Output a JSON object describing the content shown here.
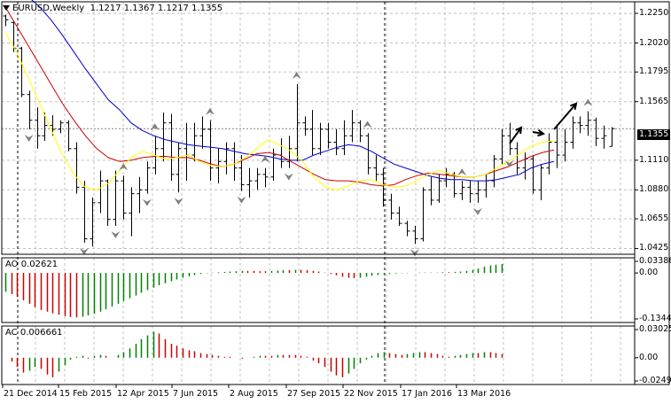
{
  "main": {
    "menu_icon": "triangle-down-icon",
    "symbol": "EURUSD,Weekly",
    "ohlc": "1.1217 1.1367 1.1217 1.1355",
    "price_axis": [
      "1.2250",
      "1.2020",
      "1.1795",
      "1.1565",
      "1.1110",
      "1.0880",
      "1.0655",
      "1.0425"
    ],
    "current_price": "1.1355"
  },
  "ao": {
    "title": "AO 0.02621",
    "axis": [
      "0.03386",
      "0.00",
      "-0.13442"
    ]
  },
  "ac": {
    "title": "AC 0.006661",
    "axis": [
      "0.030255",
      "0.00",
      "-0.02499"
    ]
  },
  "time_axis": [
    "21 Dec 2014",
    "15 Feb 2015",
    "12 Apr 2015",
    "7 Jun 2015",
    "2 Aug 2015",
    "27 Sep 2015",
    "22 Nov 2015",
    "17 Jan 2016",
    "13 Mar 2016"
  ],
  "colors": {
    "alligator_jaw": "#0000cc",
    "alligator_teeth": "#cc0000",
    "alligator_lips": "#ffff00",
    "bars": "#000000",
    "fractals": "#808080",
    "histogram_up": "#008000",
    "histogram_down": "#cc0000",
    "grid": "#c0c0c0"
  },
  "chart_data": {
    "type": "ohlc",
    "symbol": "EURUSD",
    "timeframe": "Weekly",
    "ylim": [
      1.038,
      1.234
    ],
    "indicators": [
      "Alligator",
      "Fractals"
    ],
    "bars": [
      [
        1.223,
        1.224,
        1.215,
        1.22
      ],
      [
        1.218,
        1.219,
        1.195,
        1.198
      ],
      [
        1.198,
        1.199,
        1.16,
        1.162
      ],
      [
        1.162,
        1.165,
        1.135,
        1.142
      ],
      [
        1.142,
        1.152,
        1.12,
        1.13
      ],
      [
        1.13,
        1.148,
        1.126,
        1.138
      ],
      [
        1.138,
        1.146,
        1.13,
        1.135
      ],
      [
        1.135,
        1.142,
        1.132,
        1.14
      ],
      [
        1.14,
        1.142,
        1.118,
        1.12
      ],
      [
        1.12,
        1.125,
        1.085,
        1.09
      ],
      [
        1.09,
        1.095,
        1.047,
        1.05
      ],
      [
        1.05,
        1.082,
        1.044,
        1.078
      ],
      [
        1.078,
        1.103,
        1.07,
        1.095
      ],
      [
        1.095,
        1.096,
        1.06,
        1.065
      ],
      [
        1.065,
        1.103,
        1.06,
        1.095
      ],
      [
        1.095,
        1.099,
        1.065,
        1.07
      ],
      [
        1.07,
        1.09,
        1.052,
        1.085
      ],
      [
        1.085,
        1.098,
        1.07,
        1.088
      ],
      [
        1.088,
        1.11,
        1.085,
        1.105
      ],
      [
        1.105,
        1.13,
        1.1,
        1.12
      ],
      [
        1.12,
        1.148,
        1.11,
        1.14
      ],
      [
        1.14,
        1.147,
        1.095,
        1.1
      ],
      [
        1.1,
        1.125,
        1.086,
        1.12
      ],
      [
        1.12,
        1.14,
        1.095,
        1.115
      ],
      [
        1.115,
        1.14,
        1.11,
        1.13
      ],
      [
        1.13,
        1.145,
        1.12,
        1.135
      ],
      [
        1.135,
        1.142,
        1.095,
        1.105
      ],
      [
        1.105,
        1.12,
        1.093,
        1.11
      ],
      [
        1.11,
        1.125,
        1.1,
        1.12
      ],
      [
        1.12,
        1.125,
        1.095,
        1.105
      ],
      [
        1.105,
        1.115,
        1.087,
        1.092
      ],
      [
        1.092,
        1.105,
        1.082,
        1.095
      ],
      [
        1.095,
        1.105,
        1.088,
        1.1
      ],
      [
        1.1,
        1.105,
        1.09,
        1.098
      ],
      [
        1.098,
        1.12,
        1.095,
        1.115
      ],
      [
        1.115,
        1.128,
        1.105,
        1.11
      ],
      [
        1.11,
        1.13,
        1.105,
        1.12
      ],
      [
        1.12,
        1.17,
        1.11,
        1.14
      ],
      [
        1.14,
        1.145,
        1.13,
        1.135
      ],
      [
        1.135,
        1.15,
        1.115,
        1.12
      ],
      [
        1.12,
        1.14,
        1.115,
        1.135
      ],
      [
        1.135,
        1.14,
        1.12,
        1.125
      ],
      [
        1.125,
        1.135,
        1.115,
        1.12
      ],
      [
        1.12,
        1.142,
        1.115,
        1.13
      ],
      [
        1.13,
        1.15,
        1.125,
        1.14
      ],
      [
        1.14,
        1.142,
        1.125,
        1.13
      ],
      [
        1.13,
        1.132,
        1.1,
        1.105
      ],
      [
        1.105,
        1.115,
        1.095,
        1.1
      ],
      [
        1.1,
        1.105,
        1.075,
        1.08
      ],
      [
        1.08,
        1.085,
        1.065,
        1.07
      ],
      [
        1.07,
        1.075,
        1.06,
        1.062
      ],
      [
        1.062,
        1.064,
        1.052,
        1.056
      ],
      [
        1.056,
        1.06,
        1.046,
        1.05
      ],
      [
        1.05,
        1.09,
        1.048,
        1.088
      ],
      [
        1.088,
        1.098,
        1.076,
        1.08
      ],
      [
        1.08,
        1.1,
        1.078,
        1.095
      ],
      [
        1.095,
        1.105,
        1.09,
        1.1
      ],
      [
        1.1,
        1.102,
        1.082,
        1.085
      ],
      [
        1.085,
        1.095,
        1.08,
        1.09
      ],
      [
        1.09,
        1.095,
        1.078,
        1.085
      ],
      [
        1.085,
        1.095,
        1.078,
        1.088
      ],
      [
        1.088,
        1.1,
        1.082,
        1.095
      ],
      [
        1.095,
        1.115,
        1.09,
        1.112
      ],
      [
        1.112,
        1.135,
        1.108,
        1.13
      ],
      [
        1.13,
        1.14,
        1.115,
        1.12
      ],
      [
        1.12,
        1.125,
        1.1,
        1.105
      ],
      [
        1.105,
        1.117,
        1.096,
        1.112
      ],
      [
        1.112,
        1.115,
        1.085,
        1.088
      ],
      [
        1.088,
        1.108,
        1.08,
        1.105
      ],
      [
        1.105,
        1.132,
        1.1,
        1.125
      ],
      [
        1.125,
        1.138,
        1.105,
        1.115
      ],
      [
        1.115,
        1.135,
        1.11,
        1.125
      ],
      [
        1.125,
        1.145,
        1.12,
        1.14
      ],
      [
        1.14,
        1.145,
        1.132,
        1.138
      ],
      [
        1.138,
        1.149,
        1.13,
        1.142
      ],
      [
        1.142,
        1.144,
        1.122,
        1.128
      ],
      [
        1.128,
        1.138,
        1.12,
        1.13
      ],
      [
        1.1217,
        1.1367,
        1.1217,
        1.1355
      ]
    ],
    "alligator": {
      "jaw": [
        1.25,
        1.245,
        1.238,
        1.23,
        1.22,
        1.208,
        1.195,
        1.182,
        1.17,
        1.158,
        1.15,
        1.14,
        1.134,
        1.13,
        1.127,
        1.125,
        1.123,
        1.122,
        1.121,
        1.12,
        1.118,
        1.116,
        1.115,
        1.114,
        1.112,
        1.111,
        1.111,
        1.115,
        1.118,
        1.121,
        1.123,
        1.122,
        1.118,
        1.113,
        1.108,
        1.105,
        1.102,
        1.099,
        1.097,
        1.096,
        1.096,
        1.095,
        1.095,
        1.096,
        1.098,
        1.1,
        1.105,
        1.108,
        1.11
      ],
      "teeth": [
        1.23,
        1.215,
        1.2,
        1.185,
        1.17,
        1.155,
        1.142,
        1.13,
        1.12,
        1.113,
        1.11,
        1.111,
        1.113,
        1.114,
        1.114,
        1.113,
        1.113,
        1.111,
        1.108,
        1.106,
        1.108,
        1.112,
        1.116,
        1.117,
        1.115,
        1.11,
        1.105,
        1.1,
        1.096,
        1.095,
        1.095,
        1.094,
        1.092,
        1.091,
        1.092,
        1.096,
        1.099,
        1.101,
        1.1,
        1.099,
        1.098,
        1.098,
        1.1,
        1.103,
        1.106,
        1.11,
        1.114,
        1.117,
        1.119
      ],
      "lips": [
        1.21,
        1.195,
        1.175,
        1.155,
        1.135,
        1.115,
        1.1,
        1.09,
        1.088,
        1.093,
        1.103,
        1.113,
        1.118,
        1.115,
        1.112,
        1.113,
        1.115,
        1.11,
        1.107,
        1.106,
        1.108,
        1.113,
        1.12,
        1.127,
        1.123,
        1.118,
        1.11,
        1.098,
        1.09,
        1.088,
        1.091,
        1.095,
        1.096,
        1.092,
        1.09,
        1.091,
        1.095,
        1.1,
        1.103,
        1.1,
        1.098,
        1.098,
        1.1,
        1.105,
        1.11,
        1.116,
        1.122,
        1.125,
        1.126
      ]
    },
    "fractals_up": [
      15,
      19,
      26,
      33,
      37,
      46,
      58,
      74
    ],
    "fractals_down": [
      3,
      10,
      14,
      18,
      22,
      30,
      36,
      52,
      60,
      64
    ],
    "ao": {
      "ylim": [
        -0.13442,
        0.03386
      ],
      "values": [
        -0.055,
        -0.062,
        -0.07,
        -0.08,
        -0.09,
        -0.1,
        -0.108,
        -0.113,
        -0.118,
        -0.122,
        -0.126,
        -0.129,
        -0.13,
        -0.128,
        -0.124,
        -0.119,
        -0.113,
        -0.106,
        -0.098,
        -0.09,
        -0.082,
        -0.074,
        -0.066,
        -0.058,
        -0.05,
        -0.043,
        -0.036,
        -0.03,
        -0.024,
        -0.019,
        -0.014,
        -0.01,
        -0.006,
        -0.003,
        -0.001,
        0.001,
        0.002,
        0.003,
        0.004,
        0.005,
        0.006,
        0.006,
        0.006,
        0.005,
        0.005,
        0.006,
        0.007,
        0.008,
        0.008,
        0.009,
        0.009,
        0.008,
        0.006,
        0.004,
        0.001,
        -0.003,
        -0.007,
        -0.011,
        -0.014,
        -0.015,
        -0.014,
        -0.011,
        -0.008,
        -0.006,
        -0.004,
        -0.003,
        -0.002,
        -0.001,
        -0.001,
        0.0,
        0.001,
        0.001,
        0.001,
        0.001,
        0.002,
        0.002,
        0.003,
        0.004,
        0.006,
        0.009,
        0.013,
        0.018,
        0.022,
        0.024,
        0.026
      ]
    },
    "ac": {
      "ylim": [
        -0.02499,
        0.030255
      ],
      "values": [
        0.0,
        -0.004,
        -0.01,
        -0.016,
        -0.014,
        -0.01,
        -0.012,
        -0.018,
        -0.021,
        -0.015,
        -0.008,
        -0.002,
        0.001,
        0.002,
        -0.001,
        0.002,
        0.003,
        0.002,
        0.0,
        0.003,
        0.006,
        0.01,
        0.015,
        0.02,
        0.024,
        0.028,
        0.026,
        0.02,
        0.015,
        0.013,
        0.01,
        0.008,
        0.007,
        0.005,
        0.004,
        0.003,
        0.002,
        0.001,
        0.001,
        0.0,
        -0.001,
        0.0,
        0.001,
        0.002,
        0.002,
        0.002,
        0.003,
        0.003,
        0.003,
        0.003,
        0.002,
        0.001,
        -0.003,
        -0.006,
        -0.01,
        -0.015,
        -0.019,
        -0.021,
        -0.017,
        -0.012,
        -0.006,
        -0.002,
        0.002,
        0.005,
        0.006,
        0.005,
        0.004,
        0.003,
        0.004,
        0.005,
        0.006,
        0.006,
        0.005,
        0.004,
        0.002,
        0.001,
        0.002,
        0.003,
        0.004,
        0.005,
        0.005,
        0.006,
        0.006,
        0.005,
        0.004
      ]
    }
  }
}
